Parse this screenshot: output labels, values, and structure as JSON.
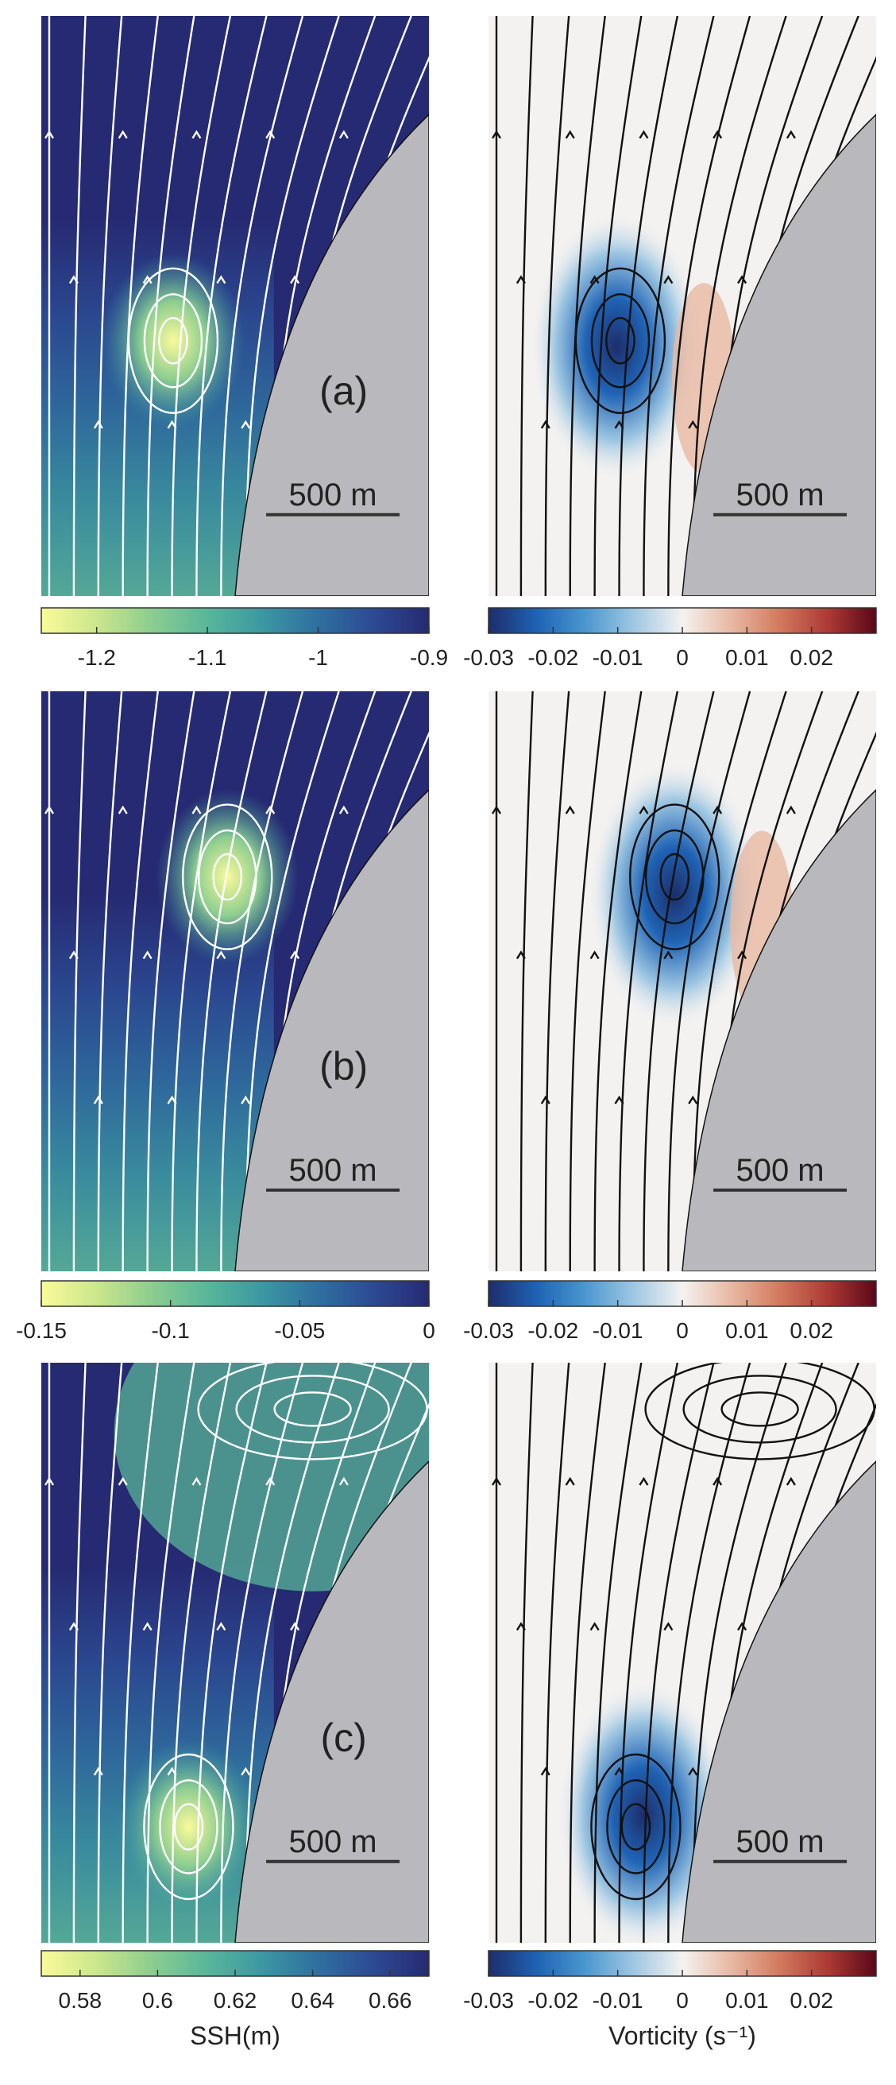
{
  "figure": {
    "scale_bar_label": "500 m",
    "land_color": "#b9b8bd",
    "panel_letters": [
      "(a)",
      "(b)",
      "(c)"
    ]
  },
  "colormaps": {
    "ssh": [
      "#fafa9a",
      "#cbe68c",
      "#8ccd90",
      "#58b69a",
      "#3c97a2",
      "#2f6fa0",
      "#2d4a93",
      "#262a72"
    ],
    "vorticity": [
      "#1d2d6b",
      "#1f63b4",
      "#4a97cf",
      "#9fc7e2",
      "#f4f2f1",
      "#e8b9a3",
      "#d27a5e",
      "#ad3a35",
      "#5a0718"
    ]
  },
  "chart_data": [
    {
      "type": "heatmap",
      "panel": "a",
      "quantity": "SSH",
      "colorbar": {
        "range": [
          -1.25,
          -0.9
        ],
        "reversed": true,
        "ticks": [
          -1.2,
          -1.1,
          -1,
          -0.9
        ],
        "tick_labels": [
          "-1.2",
          "-1.1",
          "-1",
          "-0.9"
        ]
      },
      "eddy": {
        "type": "anticyclone-low",
        "location": "near coast, mid-panel"
      }
    },
    {
      "type": "heatmap",
      "panel": "a",
      "quantity": "Vorticity",
      "colorbar": {
        "range": [
          -0.03,
          0.03
        ],
        "ticks": [
          -0.03,
          -0.02,
          -0.01,
          0,
          0.01,
          0.02
        ],
        "tick_labels": [
          "-0.03",
          "-0.02",
          "-0.01",
          "0",
          "0.01",
          "0.02"
        ]
      }
    },
    {
      "type": "heatmap",
      "panel": "b",
      "quantity": "SSH",
      "colorbar": {
        "range": [
          -0.15,
          0
        ],
        "reversed": true,
        "ticks": [
          -0.15,
          -0.1,
          -0.05,
          0
        ],
        "tick_labels": [
          "-0.15",
          "-0.1",
          "-0.05",
          "0"
        ]
      }
    },
    {
      "type": "heatmap",
      "panel": "b",
      "quantity": "Vorticity",
      "colorbar": {
        "range": [
          -0.03,
          0.03
        ],
        "ticks": [
          -0.03,
          -0.02,
          -0.01,
          0,
          0.01,
          0.02
        ],
        "tick_labels": [
          "-0.03",
          "-0.02",
          "-0.01",
          "0",
          "0.01",
          "0.02"
        ]
      }
    },
    {
      "type": "heatmap",
      "panel": "c",
      "quantity": "SSH",
      "colorbar": {
        "range": [
          0.57,
          0.67
        ],
        "reversed": true,
        "ticks": [
          0.58,
          0.6,
          0.62,
          0.64,
          0.66
        ],
        "tick_labels": [
          "0.58",
          "0.6",
          "0.62",
          "0.64",
          "0.66"
        ],
        "label": "SSH(m)"
      }
    },
    {
      "type": "heatmap",
      "panel": "c",
      "quantity": "Vorticity",
      "colorbar": {
        "range": [
          -0.03,
          0.03
        ],
        "ticks": [
          -0.03,
          -0.02,
          -0.01,
          0,
          0.01,
          0.02
        ],
        "tick_labels": [
          "-0.03",
          "-0.02",
          "-0.01",
          "0",
          "0.01",
          "0.02"
        ],
        "label": "Vorticity (s⁻¹)"
      }
    }
  ]
}
